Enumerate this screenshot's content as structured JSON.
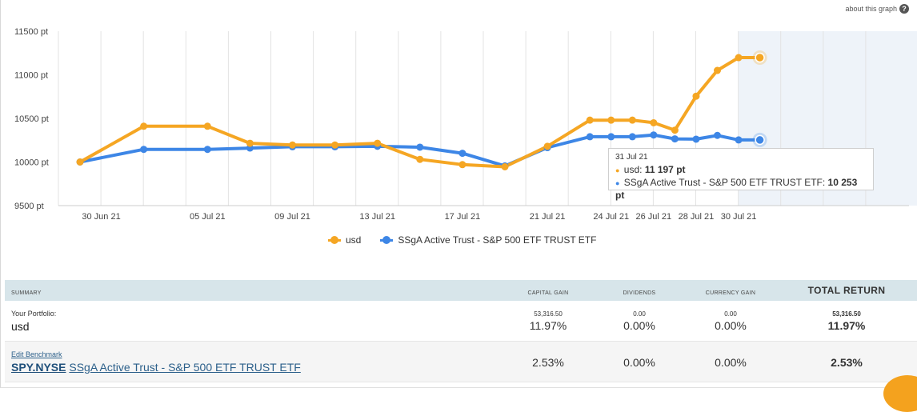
{
  "about_graph": {
    "label": "about this graph",
    "icon": "?"
  },
  "colors": {
    "usd": "#f5a623",
    "benchmark": "#3d86e6",
    "grid": "#e3e3e3",
    "highlight": "#eef3f9"
  },
  "chart_data": {
    "type": "line",
    "x": [
      "29 Jun 21",
      "02 Jul 21",
      "05 Jul 21",
      "07 Jul 21",
      "09 Jul 21",
      "11 Jul 21",
      "13 Jul 21",
      "15 Jul 21",
      "17 Jul 21",
      "19 Jul 21",
      "21 Jul 21",
      "23 Jul 21",
      "24 Jul 21",
      "25 Jul 21",
      "26 Jul 21",
      "27 Jul 21",
      "28 Jul 21",
      "29 Jul 21",
      "30 Jul 21",
      "31 Jul 21"
    ],
    "series": [
      {
        "name": "usd",
        "values": [
          10000,
          10410,
          10410,
          10215,
          10195,
          10195,
          10215,
          10030,
          9970,
          9945,
          10180,
          10480,
          10480,
          10480,
          10450,
          10365,
          10755,
          11050,
          11197,
          11197
        ]
      },
      {
        "name": "SSgA Active Trust - S&P 500 ETF TRUST ETF",
        "values": [
          10000,
          10145,
          10145,
          10160,
          10175,
          10175,
          10180,
          10170,
          10100,
          9955,
          10165,
          10290,
          10290,
          10290,
          10310,
          10265,
          10262,
          10305,
          10253,
          10253
        ]
      }
    ],
    "x_tick_labels": [
      "30 Jun 21",
      "05 Jul 21",
      "09 Jul 21",
      "13 Jul 21",
      "17 Jul 21",
      "21 Jul 21",
      "24 Jul 21",
      "26 Jul 21",
      "28 Jul 21",
      "30 Jul 21"
    ],
    "y_tick_labels": [
      "11500 pt",
      "11000 pt",
      "10500 pt",
      "10000 pt",
      "9500 pt"
    ],
    "ylim": [
      9500,
      11500
    ],
    "grid": true,
    "legend_placement": "bottom-center"
  },
  "tooltip": {
    "date": "31 Jul 21",
    "usd_label": "usd:",
    "usd_value": "11 197 pt",
    "bench_label": "SSgA Active Trust - S&P 500 ETF TRUST ETF:",
    "bench_value": "10 253 pt"
  },
  "legend": {
    "usd": "usd",
    "benchmark": "SSgA Active Trust - S&P 500 ETF TRUST ETF"
  },
  "summary": {
    "headers": {
      "summary": "SUMMARY",
      "capital_gain": "CAPITAL GAIN",
      "dividends": "DIVIDENDS",
      "currency_gain": "CURRENCY GAIN",
      "total_return": "TOTAL RETURN"
    },
    "portfolio": {
      "label": "Your Portfolio:",
      "name": "usd",
      "capital_gain_amount": "53,316.50",
      "capital_gain_pct": "11.97%",
      "dividends_amount": "0.00",
      "dividends_pct": "0.00%",
      "currency_gain_amount": "0.00",
      "currency_gain_pct": "0.00%",
      "total_return_amount": "53,316.50",
      "total_return_pct": "11.97%"
    },
    "benchmark": {
      "edit_label": "Edit Benchmark",
      "ticker": "SPY.NYSE",
      "name": "SSgA Active Trust - S&P 500 ETF TRUST ETF",
      "capital_gain_pct": "2.53%",
      "dividends_pct": "0.00%",
      "currency_gain_pct": "0.00%",
      "total_return_pct": "2.53%"
    }
  }
}
